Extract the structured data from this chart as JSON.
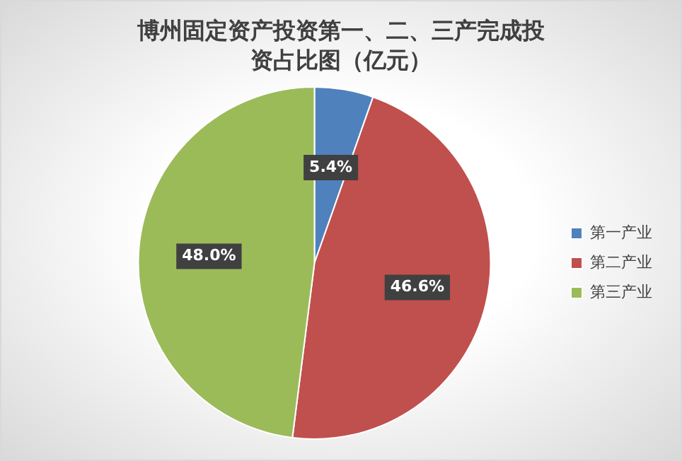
{
  "chart_data": {
    "type": "pie",
    "title": "博州固定资产投资第一、二、三产完成投资占比图（亿元）",
    "categories": [
      "第一产业",
      "第二产业",
      "第三产业"
    ],
    "values": [
      5.4,
      46.6,
      48.0
    ],
    "colors": [
      "#4f81bd",
      "#c0504d",
      "#9bbb59"
    ],
    "value_labels": [
      "5.4%",
      "46.6%",
      "48.0%"
    ],
    "legend": "right"
  }
}
